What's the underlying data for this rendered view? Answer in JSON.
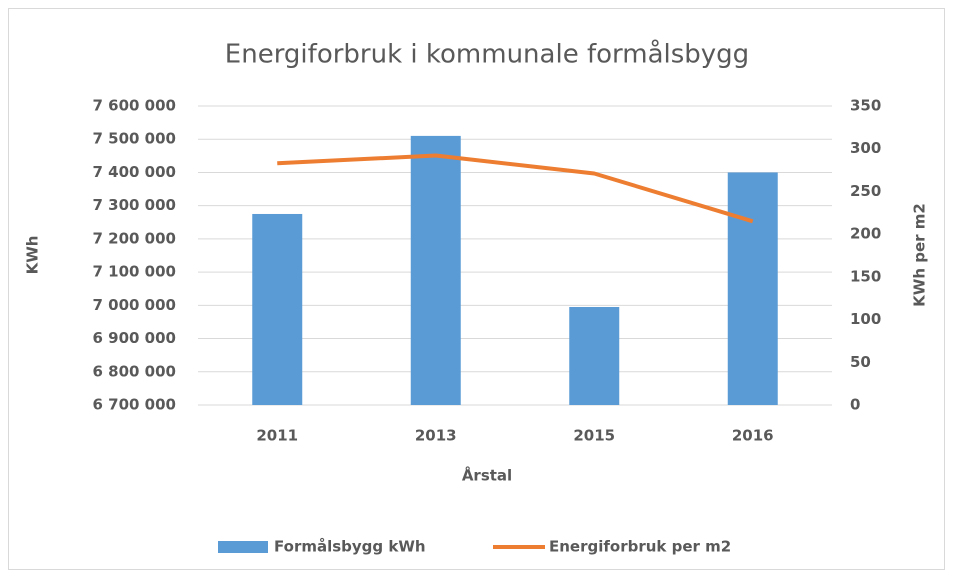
{
  "chart_data": {
    "type": "bar",
    "title": "Energiforbruk i kommunale formålsbygg",
    "xlabel": "Årstal",
    "ylabel": "KWh",
    "y2label": "KWh  per m2",
    "categories": [
      "2011",
      "2013",
      "2015",
      "2016"
    ],
    "series": [
      {
        "name": "Formålsbygg kWh",
        "color": "#5b9bd5",
        "type": "bar",
        "values": [
          7275000,
          7510000,
          6995000,
          7400000
        ]
      },
      {
        "name": "Energiforbruk per m2",
        "color": "#ed7d31",
        "type": "line",
        "axis": "y2",
        "values": [
          283,
          292,
          271,
          215
        ]
      }
    ],
    "ylim": [
      6700000,
      7600000
    ],
    "yticks": [
      {
        "value": 6700000,
        "label": "6 700 000"
      },
      {
        "value": 6800000,
        "label": "6 800 000"
      },
      {
        "value": 6900000,
        "label": "6 900 000"
      },
      {
        "value": 7000000,
        "label": "7 000 000"
      },
      {
        "value": 7100000,
        "label": "7 100 000"
      },
      {
        "value": 7200000,
        "label": "7 200 000"
      },
      {
        "value": 7300000,
        "label": "7 300 000"
      },
      {
        "value": 7400000,
        "label": "7 400 000"
      },
      {
        "value": 7500000,
        "label": "7 500 000"
      },
      {
        "value": 7600000,
        "label": "7 600 000"
      }
    ],
    "y2lim": [
      0,
      350
    ],
    "y2ticks": [
      0,
      50,
      100,
      150,
      200,
      250,
      300,
      350
    ],
    "grid": true,
    "legend": "bottom"
  }
}
